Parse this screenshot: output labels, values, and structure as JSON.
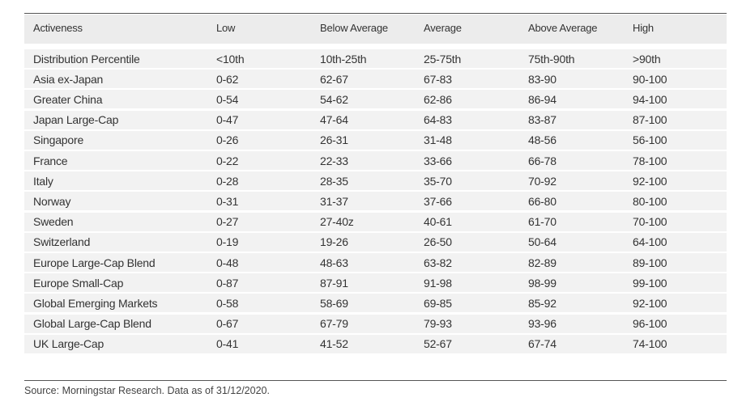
{
  "table": {
    "header": [
      "Activeness",
      "Low",
      "Below Average",
      "Average",
      "Above Average",
      "High"
    ],
    "rows": [
      [
        "Distribution Percentile",
        "<10th",
        "10th-25th",
        "25-75th",
        "75th-90th",
        ">90th"
      ],
      [
        "Asia ex-Japan",
        "0-62",
        "62-67",
        "67-83",
        "83-90",
        "90-100"
      ],
      [
        "Greater China",
        "0-54",
        "54-62",
        "62-86",
        "86-94",
        "94-100"
      ],
      [
        "Japan Large-Cap",
        "0-47",
        "47-64",
        "64-83",
        "83-87",
        "87-100"
      ],
      [
        "Singapore",
        "0-26",
        "26-31",
        "31-48",
        "48-56",
        "56-100"
      ],
      [
        "France",
        "0-22",
        "22-33",
        "33-66",
        "66-78",
        "78-100"
      ],
      [
        "Italy",
        "0-28",
        "28-35",
        "35-70",
        "70-92",
        "92-100"
      ],
      [
        "Norway",
        "0-31",
        "31-37",
        "37-66",
        "66-80",
        "80-100"
      ],
      [
        "Sweden",
        "0-27",
        "27-40z",
        "40-61",
        "61-70",
        "70-100"
      ],
      [
        "Switzerland",
        "0-19",
        "19-26",
        "26-50",
        "50-64",
        "64-100"
      ],
      [
        "Europe Large-Cap Blend",
        "0-48",
        "48-63",
        "63-82",
        "82-89",
        "89-100"
      ],
      [
        "Europe Small-Cap",
        "0-87",
        "87-91",
        "91-98",
        "98-99",
        "99-100"
      ],
      [
        "Global Emerging Markets",
        "0-58",
        "58-69",
        "69-85",
        "85-92",
        "92-100"
      ],
      [
        "Global Large-Cap Blend",
        "0-67",
        "67-79",
        "79-93",
        "93-96",
        "96-100"
      ],
      [
        "UK Large-Cap",
        "0-41",
        "41-52",
        "52-67",
        "67-74",
        "74-100"
      ]
    ]
  },
  "footer": {
    "source": "Morningstar Research. Data as of 31/12/2020."
  }
}
